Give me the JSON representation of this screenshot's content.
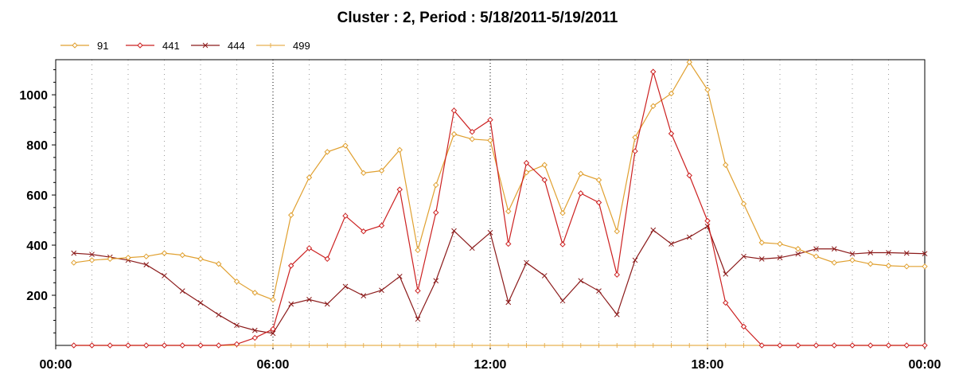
{
  "chart_data": {
    "type": "line",
    "title": "Cluster : 2, Period : 5/18/2011-5/19/2011",
    "xlabel": "",
    "ylabel": "",
    "legend_position": "top-left",
    "grid": "dotted vertical",
    "x_ticks": [
      "00:00",
      "06:00",
      "12:00",
      "18:00",
      "00:00"
    ],
    "y_ticks": [
      "200",
      "400",
      "600",
      "800",
      "1000"
    ],
    "xlim": [
      0,
      24
    ],
    "ylim": [
      0,
      1140
    ],
    "x_hours": [
      0.5,
      1.0,
      1.5,
      2.0,
      2.5,
      3.0,
      3.5,
      4.0,
      4.5,
      5.0,
      5.5,
      6.0,
      6.5,
      7.0,
      7.5,
      8.0,
      8.5,
      9.0,
      9.5,
      10.0,
      10.5,
      11.0,
      11.5,
      12.0,
      12.5,
      13.0,
      13.5,
      14.0,
      14.5,
      15.0,
      15.5,
      16.0,
      16.5,
      17.0,
      17.5,
      18.0,
      18.5,
      19.0,
      19.5,
      20.0,
      20.5,
      21.0,
      21.5,
      22.0,
      22.5,
      23.0,
      23.5,
      24.0
    ],
    "series": [
      {
        "name": "91",
        "color": "#e0a030",
        "marker": "diamond",
        "values": [
          330,
          340,
          345,
          350,
          355,
          368,
          360,
          345,
          325,
          255,
          210,
          182,
          520,
          670,
          772,
          797,
          688,
          697,
          780,
          380,
          640,
          843,
          823,
          818,
          535,
          690,
          720,
          528,
          685,
          660,
          455,
          830,
          955,
          1005,
          1130,
          1020,
          720,
          565,
          410,
          405,
          385,
          355,
          330,
          340,
          325,
          318,
          315,
          315
        ]
      },
      {
        "name": "441",
        "color": "#cc2020",
        "marker": "diamond",
        "values": [
          0,
          0,
          0,
          0,
          0,
          0,
          0,
          0,
          0,
          5,
          30,
          65,
          318,
          388,
          345,
          517,
          455,
          478,
          622,
          218,
          530,
          937,
          852,
          900,
          405,
          728,
          660,
          403,
          607,
          570,
          282,
          775,
          1092,
          845,
          678,
          497,
          170,
          75,
          0,
          0,
          0,
          0,
          0,
          0,
          0,
          0,
          0,
          0
        ]
      },
      {
        "name": "444",
        "color": "#8b1a1a",
        "marker": "x",
        "values": [
          368,
          363,
          352,
          340,
          322,
          278,
          217,
          170,
          122,
          80,
          60,
          48,
          165,
          183,
          165,
          235,
          198,
          220,
          275,
          105,
          258,
          457,
          388,
          450,
          172,
          330,
          278,
          178,
          258,
          217,
          123,
          340,
          460,
          405,
          432,
          475,
          285,
          355,
          345,
          350,
          365,
          385,
          385,
          365,
          370,
          370,
          368,
          366
        ]
      },
      {
        "name": "499",
        "color": "#e8b050",
        "marker": "plus",
        "values": [
          0,
          0,
          0,
          0,
          0,
          0,
          0,
          0,
          0,
          0,
          0,
          0,
          0,
          0,
          0,
          0,
          0,
          0,
          0,
          0,
          0,
          0,
          0,
          0,
          0,
          0,
          0,
          0,
          0,
          0,
          0,
          0,
          0,
          0,
          0,
          0,
          0,
          0,
          0,
          0,
          0,
          0,
          0,
          0,
          0,
          0,
          0,
          0
        ]
      }
    ]
  }
}
